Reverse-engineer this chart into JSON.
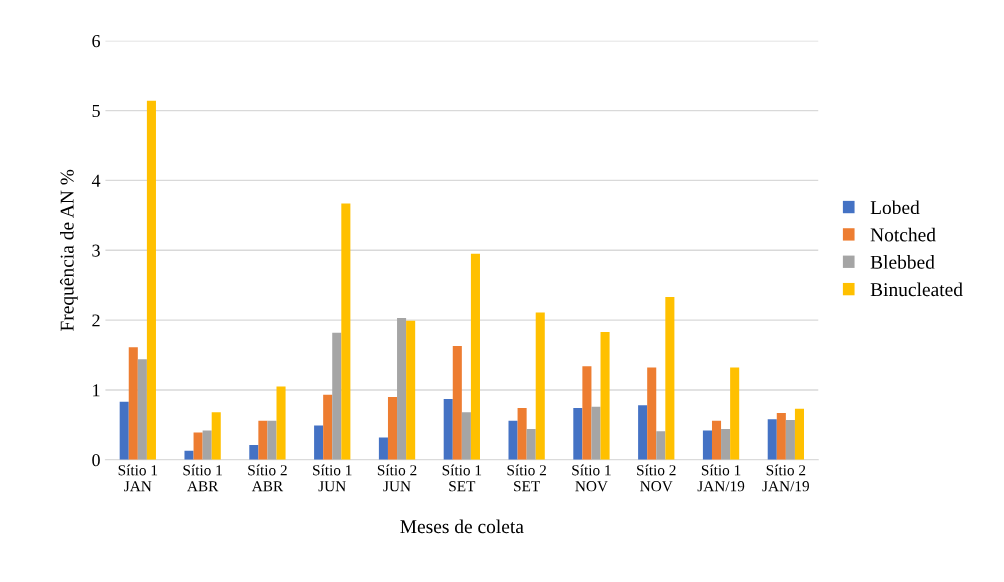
{
  "chart_data": {
    "type": "bar",
    "xlabel": "Meses de coleta",
    "ylabel": "Frequência de AN %",
    "categories": [
      "Sítio 1\nJAN",
      "Sítio 1\nABR",
      "Sítio 2\nABR",
      "Sítio 1\nJUN",
      "Sítio 2\nJUN",
      "Sítio 1\nSET",
      "Sítio 2\nSET",
      "Sítio 1\nNOV",
      "Sítio 2\nNOV",
      "Sítio 1\nJAN/19",
      "Sítio 2\nJAN/19"
    ],
    "series": [
      {
        "name": "Lobed",
        "color": "#4472c4",
        "values": [
          0.83,
          0.13,
          0.21,
          0.49,
          0.32,
          0.87,
          0.56,
          0.74,
          0.78,
          0.42,
          0.58
        ]
      },
      {
        "name": "Notched",
        "color": "#ed7d31",
        "values": [
          1.61,
          0.39,
          0.56,
          0.93,
          0.9,
          1.63,
          0.74,
          1.34,
          1.32,
          0.56,
          0.67
        ]
      },
      {
        "name": "Blebbed",
        "color": "#a5a5a5",
        "values": [
          1.44,
          0.42,
          0.56,
          1.82,
          2.03,
          0.68,
          0.44,
          0.76,
          0.41,
          0.44,
          0.57
        ]
      },
      {
        "name": "Binucleated",
        "color": "#ffc000",
        "values": [
          5.14,
          0.68,
          1.05,
          3.67,
          1.99,
          2.95,
          2.11,
          1.83,
          2.33,
          1.32,
          0.73
        ]
      }
    ],
    "ylim": [
      0,
      6
    ],
    "yticks": [
      0,
      1,
      2,
      3,
      4,
      5,
      6
    ],
    "grid": "y",
    "legend": "right"
  }
}
